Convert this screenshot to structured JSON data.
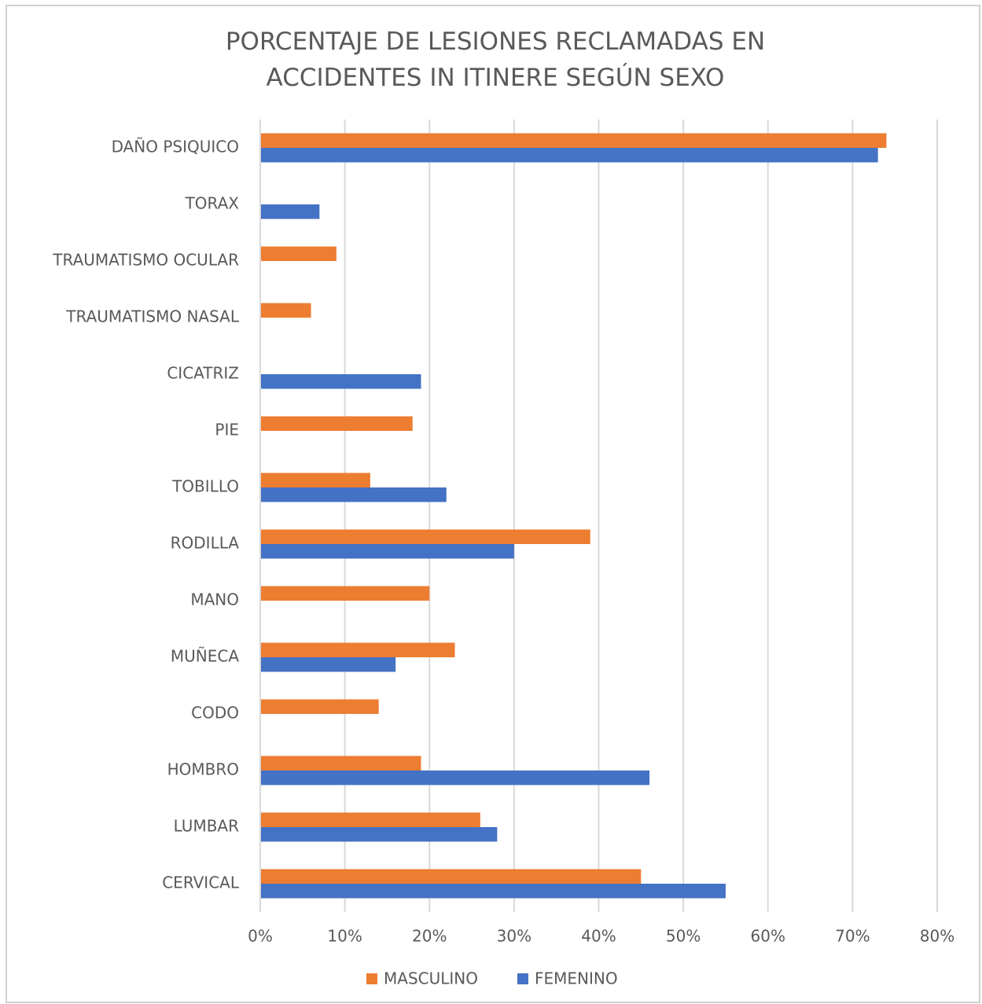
{
  "chart_data": {
    "type": "hbar",
    "title": "PORCENTAJE DE LESIONES RECLAMADAS EN ACCIDENTES IN ITINERE SEGÚN SEXO",
    "categories": [
      "DAÑO PSIQUICO",
      "TORAX",
      "TRAUMATISMO OCULAR",
      "TRAUMATISMO NASAL",
      "CICATRIZ",
      "PIE",
      "TOBILLO",
      "RODILLA",
      "MANO",
      "MUÑECA",
      "CODO",
      "HOMBRO",
      "LUMBAR",
      "CERVICAL"
    ],
    "series": [
      {
        "name": "MASCULINO",
        "color": "#ed7d31",
        "values": [
          74,
          null,
          9,
          6,
          null,
          18,
          13,
          39,
          20,
          23,
          14,
          19,
          26,
          45
        ]
      },
      {
        "name": "FEMENINO",
        "color": "#4472c4",
        "values": [
          73,
          7,
          null,
          null,
          19,
          null,
          22,
          30,
          null,
          16,
          null,
          46,
          28,
          55
        ]
      }
    ],
    "xlim": [
      0,
      80
    ],
    "xticks": [
      {
        "value": 0,
        "label": "0%"
      },
      {
        "value": 10,
        "label": "10%"
      },
      {
        "value": 20,
        "label": "20%"
      },
      {
        "value": 30,
        "label": "30%"
      },
      {
        "value": 40,
        "label": "40%"
      },
      {
        "value": 50,
        "label": "50%"
      },
      {
        "value": 60,
        "label": "60%"
      },
      {
        "value": 70,
        "label": "70%"
      },
      {
        "value": 80,
        "label": "80%"
      }
    ],
    "grid": true,
    "legend": "bottom"
  }
}
